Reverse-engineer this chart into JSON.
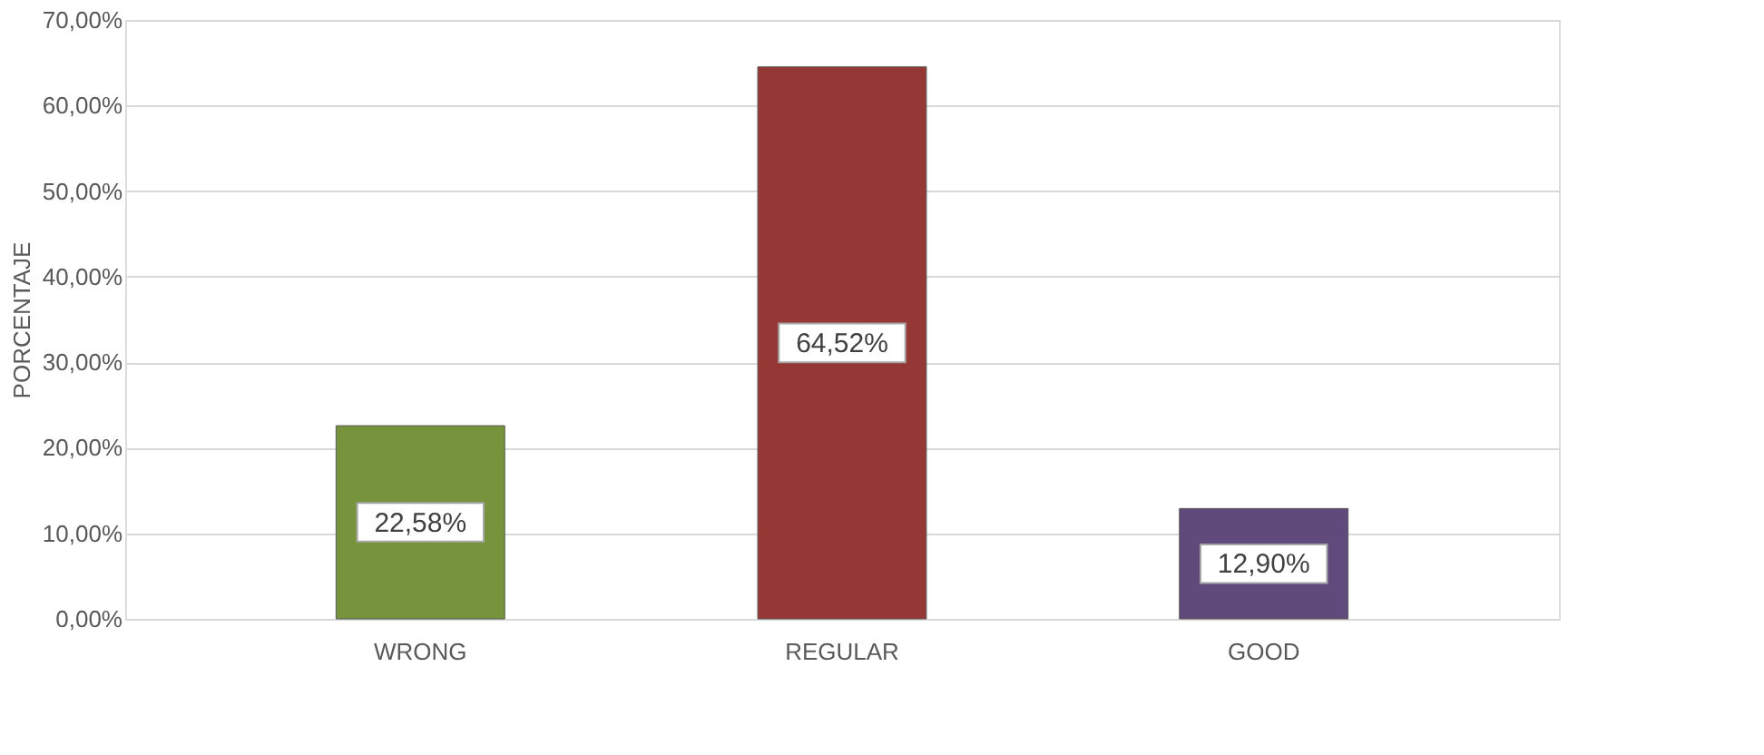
{
  "chart_data": {
    "type": "bar",
    "categories": [
      "WRONG",
      "REGULAR",
      "GOOD"
    ],
    "values": [
      22.58,
      64.52,
      12.9
    ],
    "colors": [
      "#77933c",
      "#953735",
      "#604a7b"
    ],
    "value_labels": [
      "22,58%",
      "64,52%",
      "12,90%"
    ],
    "ylabel": "PORCENTAJE",
    "ylim": [
      0,
      70
    ],
    "yticks": [
      {
        "value": 0,
        "label": "0,00%"
      },
      {
        "value": 10,
        "label": "10,00%"
      },
      {
        "value": 20,
        "label": "20,00%"
      },
      {
        "value": 30,
        "label": "30,00%"
      },
      {
        "value": 40,
        "label": "40,00%"
      },
      {
        "value": 50,
        "label": "50,00%"
      },
      {
        "value": 60,
        "label": "60,00%"
      },
      {
        "value": 70,
        "label": "70,00%"
      }
    ],
    "grid": "y"
  }
}
